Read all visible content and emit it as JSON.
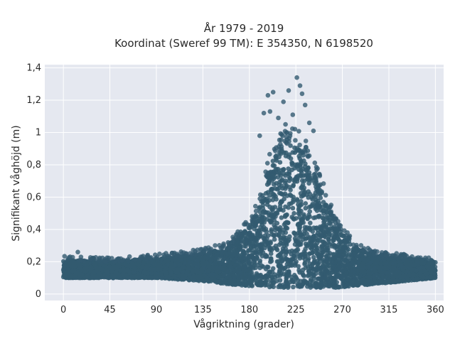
{
  "chart_data": {
    "type": "scatter",
    "title_lines": [
      "År 1979 - 2019",
      "Koordinat (Sweref 99 TM): E 354350, N 6198520"
    ],
    "xlabel": "Vågriktning (grader)",
    "ylabel": "Signifikant våghöjd (m)",
    "xlim": [
      -18,
      368
    ],
    "ylim": [
      -0.04,
      1.42
    ],
    "x_ticks": [
      0,
      45,
      90,
      135,
      180,
      225,
      270,
      315,
      360
    ],
    "x_tick_labels": [
      "0",
      "45",
      "90",
      "135",
      "180",
      "225",
      "270",
      "315",
      "360"
    ],
    "y_ticks": [
      0,
      0.2,
      0.4,
      0.6,
      0.8,
      1.0,
      1.2,
      1.4
    ],
    "y_tick_labels": [
      "0",
      "0,2",
      "0,4",
      "0,6",
      "0,8",
      "1",
      "1,2",
      "1,4"
    ],
    "grid": true,
    "legend": "none",
    "marker_color": "#335a70",
    "plot_background": "#e5e8f0",
    "envelope": {
      "x": [
        0,
        45,
        90,
        135,
        160,
        180,
        190,
        200,
        210,
        220,
        225,
        235,
        245,
        255,
        265,
        280,
        300,
        330,
        360
      ],
      "upper_dense": [
        0.21,
        0.2,
        0.22,
        0.25,
        0.29,
        0.42,
        0.55,
        0.8,
        0.9,
        0.93,
        0.93,
        0.85,
        0.72,
        0.56,
        0.42,
        0.3,
        0.24,
        0.22,
        0.21
      ],
      "lower_dense": [
        0.1,
        0.1,
        0.1,
        0.08,
        0.06,
        0.05,
        0.05,
        0.04,
        0.04,
        0.04,
        0.04,
        0.04,
        0.04,
        0.04,
        0.04,
        0.05,
        0.06,
        0.08,
        0.1
      ]
    },
    "outliers": [
      {
        "x": 14,
        "y": 0.26
      },
      {
        "x": 75,
        "y": 0.23
      },
      {
        "x": 190,
        "y": 0.98
      },
      {
        "x": 194,
        "y": 1.12
      },
      {
        "x": 200,
        "y": 1.13
      },
      {
        "x": 198,
        "y": 1.23
      },
      {
        "x": 203,
        "y": 1.25
      },
      {
        "x": 213,
        "y": 1.19
      },
      {
        "x": 218,
        "y": 1.26
      },
      {
        "x": 226,
        "y": 1.34
      },
      {
        "x": 229,
        "y": 1.29
      },
      {
        "x": 231,
        "y": 1.24
      },
      {
        "x": 234,
        "y": 1.17
      },
      {
        "x": 238,
        "y": 1.06
      },
      {
        "x": 222,
        "y": 1.11
      },
      {
        "x": 208,
        "y": 1.09
      },
      {
        "x": 242,
        "y": 1.01
      },
      {
        "x": 215,
        "y": 1.05
      }
    ]
  }
}
